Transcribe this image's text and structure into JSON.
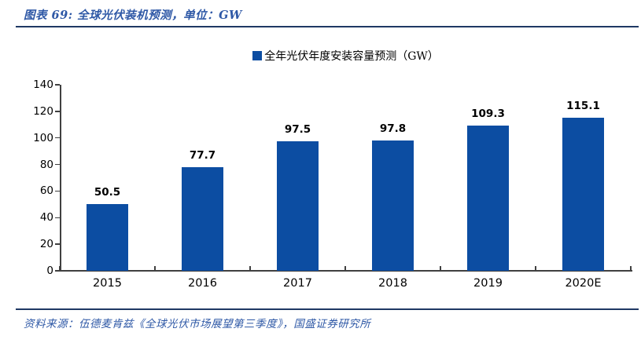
{
  "header": {
    "title": "图表 69: 全球光伏装机预测，单位：GW"
  },
  "chart_data": {
    "type": "bar",
    "categories": [
      "2015",
      "2016",
      "2017",
      "2018",
      "2019",
      "2020E"
    ],
    "values": [
      50.5,
      77.7,
      97.5,
      97.8,
      109.3,
      115.1
    ],
    "title": "",
    "xlabel": "",
    "ylabel": "",
    "legend": "全年光伏年度安装容量预测（GW）",
    "legend_position": "top-center",
    "ylim": [
      0,
      140
    ],
    "ytick_step": 20,
    "yticks": [
      0,
      20,
      40,
      60,
      80,
      100,
      120,
      140
    ],
    "grid": false,
    "bar_color": "#0C4DA2"
  },
  "footer": {
    "source": "资料来源：伍德麦肯兹《全球光伏市场展望第三季度》，国盛证券研究所"
  },
  "colors": {
    "bar": "#0C4DA2",
    "divider": "#1F3864",
    "title_text": "#2E58A6",
    "source_text": "#2E58A6",
    "axis": "#404040",
    "value_label": "#000000"
  }
}
